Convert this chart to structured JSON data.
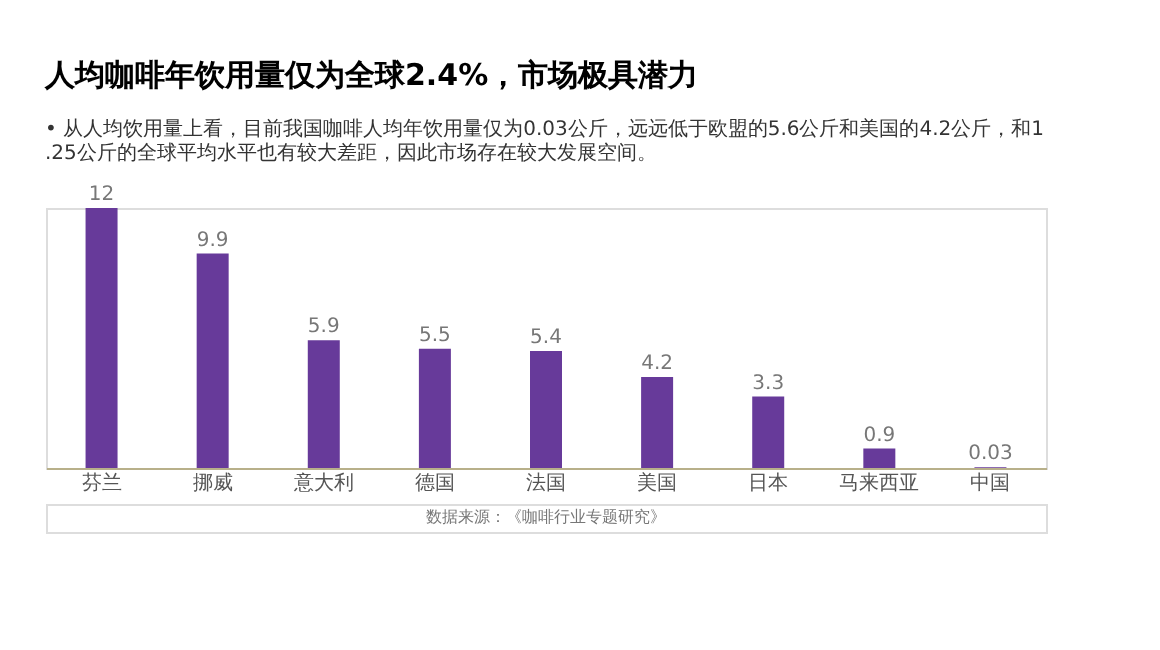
{
  "chart_data": {
    "type": "bar",
    "title": "人均咖啡年饮用量仅为全球2.4%，市场极具潜力",
    "subtitle": "•  从人均饮用量上看，目前我国咖啡人均年饮用量仅为0.03公斤，远远低于欧盟的5.6公斤和美国的4.2公斤，和1.25公斤的全球平均水平也有较大差距，因此市场存在较大发展空间。",
    "categories": [
      "芬兰",
      "挪威",
      "意大利",
      "德国",
      "法国",
      "美国",
      "日本",
      "马来西亚",
      "中国"
    ],
    "values": [
      12,
      9.9,
      5.9,
      5.5,
      5.4,
      4.2,
      3.3,
      0.9,
      0.03
    ],
    "color": "#673a9a",
    "data_labels": true,
    "grid": false,
    "annotations": [
      "数据来源：《咖啡行业专题研究》"
    ]
  }
}
